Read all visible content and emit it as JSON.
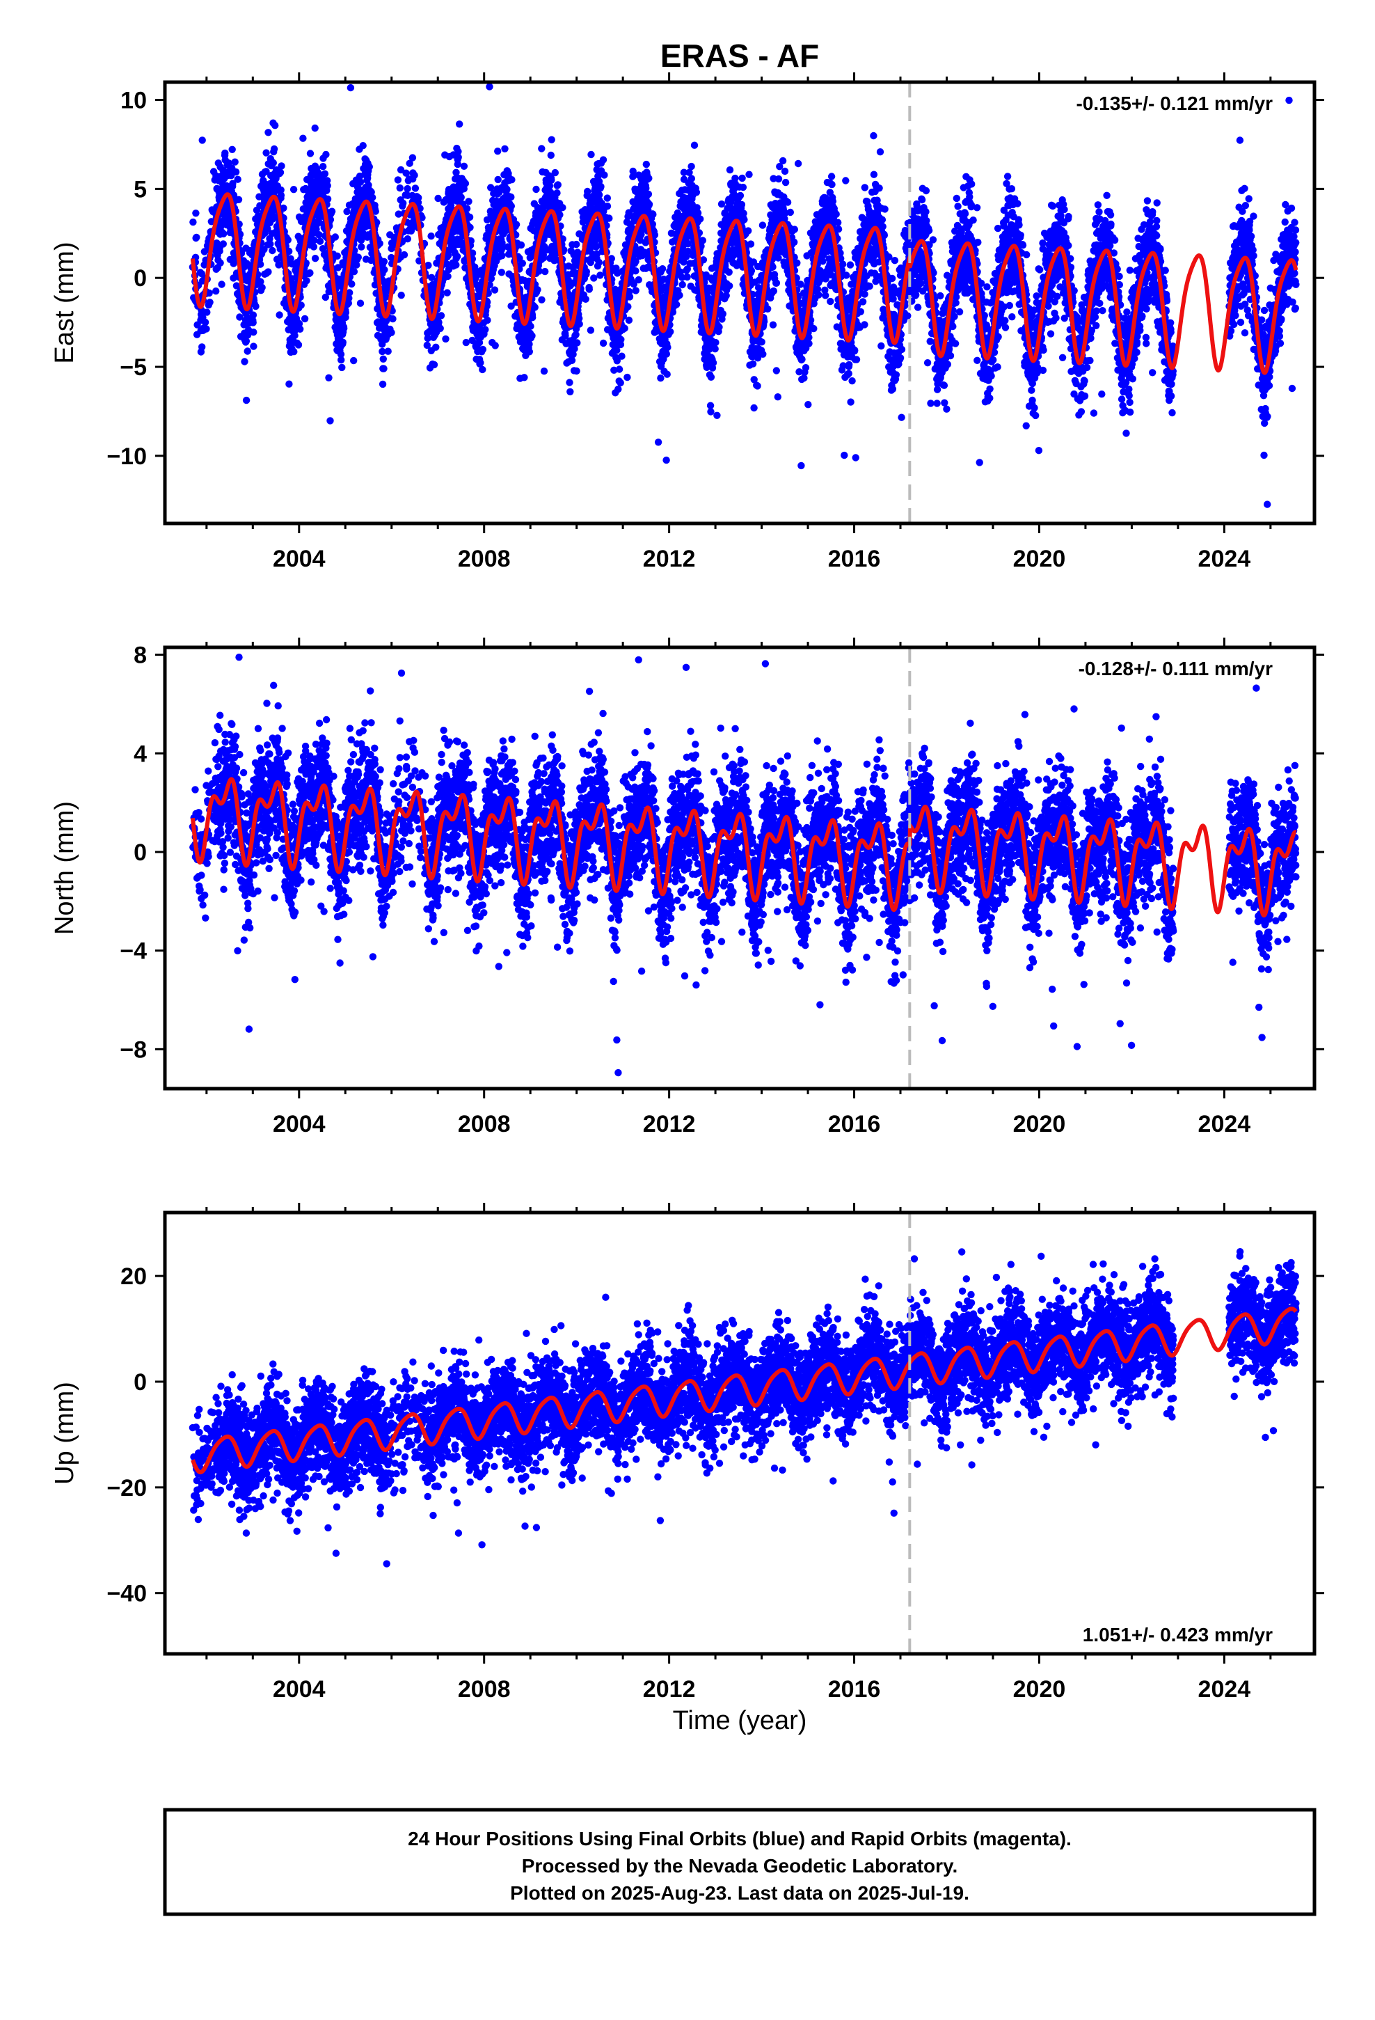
{
  "title": "ERAS - AF",
  "colors": {
    "final_orbits": "#0000ff",
    "rapid_orbits": "#ff00ff",
    "model": "#ee1111",
    "break_line": "#bbbbbb",
    "frame": "#000000"
  },
  "x_axis": {
    "label": "Time (year)",
    "range": [
      2001.1,
      2025.95
    ],
    "ticks": [
      2004,
      2008,
      2012,
      2016,
      2020,
      2024
    ],
    "tick_labels": [
      "2004",
      "2008",
      "2012",
      "2016",
      "2020",
      "2024"
    ]
  },
  "footer": {
    "lines": [
      "24 Hour Positions Using Final Orbits (blue) and Rapid Orbits (magenta).",
      "Processed by the Nevada Geodetic Laboratory.",
      "Plotted on 2025-Aug-23. Last data on 2025-Jul-19."
    ]
  },
  "chart_data": [
    {
      "type": "scatter",
      "component": "East",
      "ylabel": "East (mm)",
      "ylim": [
        -13.8,
        11
      ],
      "yticks": [
        -10,
        -5,
        0,
        5,
        10
      ],
      "ytick_labels": [
        "−10",
        "−5",
        "0",
        "5",
        "10"
      ],
      "rate": "-0.135+/- 0.121 mm/yr",
      "rate_position": "top-right",
      "slope": -0.135,
      "intercept_2013": 0.5,
      "offset_after_break": -0.6,
      "annual_amplitude": 3.1,
      "semiannual_amplitude": 0.6,
      "noise_sd": 1.4,
      "break_year": 2017.2,
      "data_start": 2001.7,
      "data_end": 2025.55,
      "gaps": [
        [
          2022.9,
          2024.1
        ]
      ],
      "sparse_segments": [
        [
          2001.7,
          2002.2
        ],
        [
          2005.9,
          2006.8
        ]
      ],
      "outlier_sd": 4.5
    },
    {
      "type": "scatter",
      "component": "North",
      "ylabel": "North (mm)",
      "ylim": [
        -9.6,
        8.3
      ],
      "yticks": [
        -8,
        -4,
        0,
        4,
        8
      ],
      "ytick_labels": [
        "−8",
        "−4",
        "0",
        "4",
        "8"
      ],
      "rate": "-0.128+/- 0.111 mm/yr",
      "rate_position": "top-right",
      "slope": -0.128,
      "intercept_2013": 0.2,
      "offset_after_break": 0.8,
      "annual_amplitude": 1.3,
      "semiannual_amplitude": 0.8,
      "noise_sd": 1.2,
      "break_year": 2017.2,
      "data_start": 2001.7,
      "data_end": 2025.55,
      "gaps": [
        [
          2022.9,
          2024.1
        ]
      ],
      "sparse_segments": [
        [
          2001.7,
          2002.2
        ],
        [
          2005.9,
          2006.8
        ]
      ],
      "outlier_sd": 3.5
    },
    {
      "type": "scatter",
      "component": "Up",
      "ylabel": "Up (mm)",
      "ylim": [
        -51.5,
        32
      ],
      "yticks": [
        -40,
        -20,
        0,
        20
      ],
      "ytick_labels": [
        "−40",
        "−20",
        "0",
        "20"
      ],
      "rate": "1.051+/- 0.423 mm/yr",
      "rate_position": "bottom-right",
      "slope": 1.051,
      "intercept_2013": -2.0,
      "offset_after_break": 0.0,
      "annual_amplitude": 3.0,
      "semiannual_amplitude": 0.5,
      "noise_sd": 4.5,
      "break_year": 2017.2,
      "data_start": 2001.7,
      "data_end": 2025.55,
      "gaps": [
        [
          2022.9,
          2024.1
        ]
      ],
      "sparse_segments": [
        [
          2001.7,
          2002.2
        ],
        [
          2005.9,
          2006.8
        ]
      ],
      "outlier_sd": 10
    }
  ]
}
